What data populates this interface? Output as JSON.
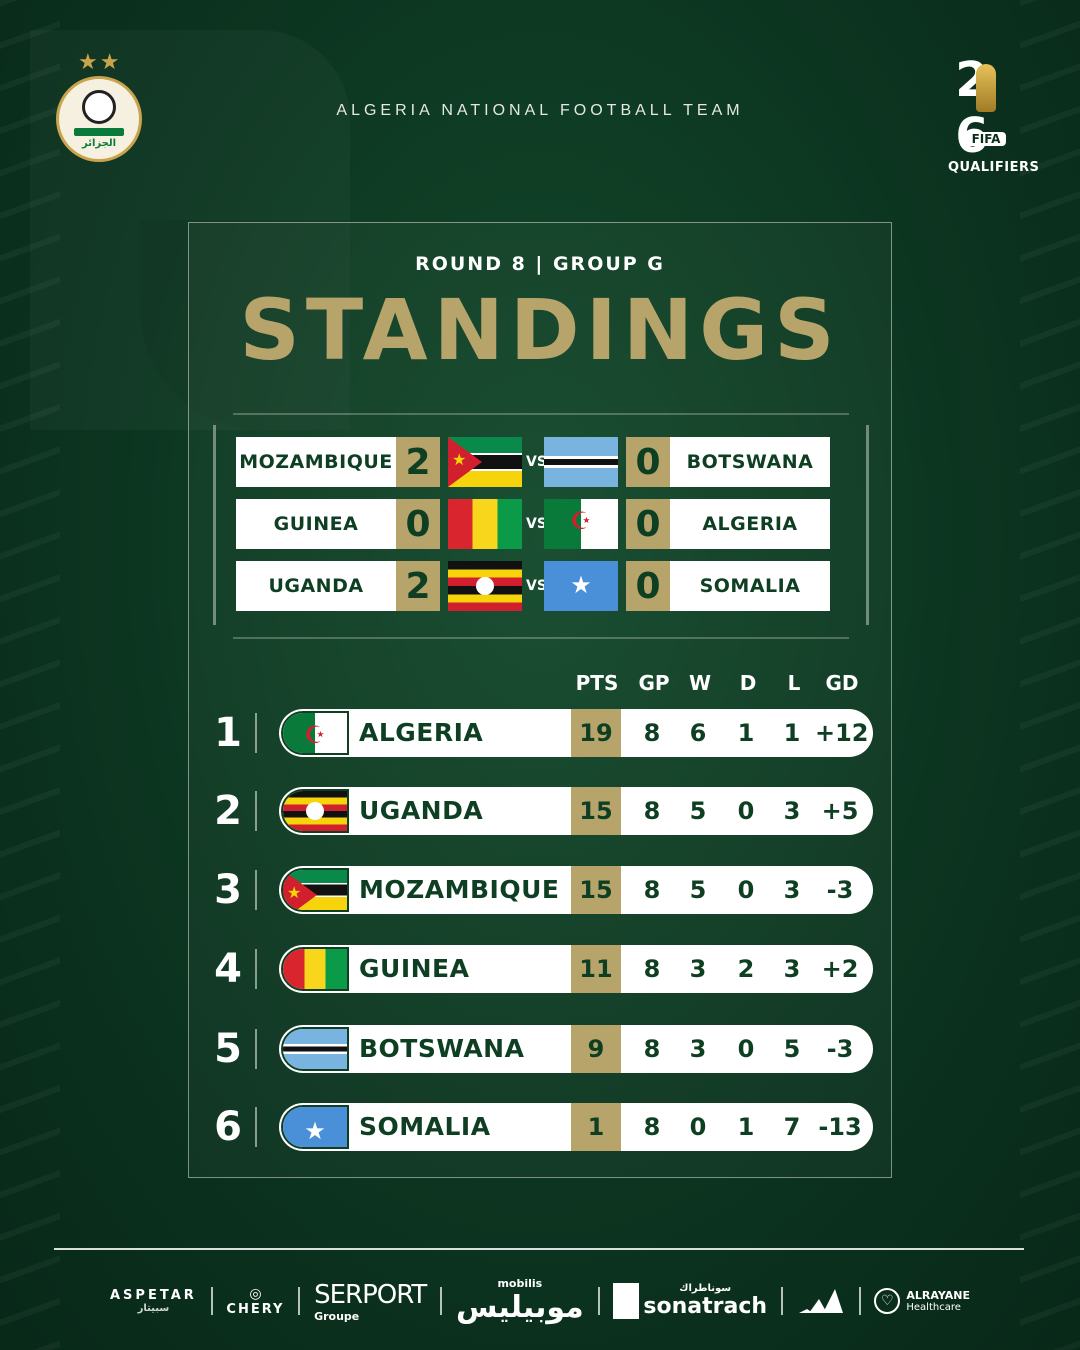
{
  "header": {
    "stars": "★★",
    "team_title": "ALGERIA NATIONAL FOOTBALL TEAM",
    "badge_text": "الجزائر",
    "wc_digits": "26",
    "wc_fifa": "FIFA",
    "wc_qualifiers": "QUALIFIERS"
  },
  "round_label": "ROUND 8 | GROUP G",
  "title": "STANDINGS",
  "vs_label": "VS",
  "results": [
    {
      "home": "MOZAMBIQUE",
      "home_score": "2",
      "home_flag": "moz",
      "away": "BOTSWANA",
      "away_score": "0",
      "away_flag": "bot"
    },
    {
      "home": "GUINEA",
      "home_score": "0",
      "home_flag": "gui",
      "away": "ALGERIA",
      "away_score": "0",
      "away_flag": "alg"
    },
    {
      "home": "UGANDA",
      "home_score": "2",
      "home_flag": "uga",
      "away": "SOMALIA",
      "away_score": "0",
      "away_flag": "som"
    }
  ],
  "table": {
    "headers": {
      "pts": "PTS",
      "gp": "GP",
      "w": "W",
      "d": "D",
      "l": "L",
      "gd": "GD"
    },
    "rows": [
      {
        "rank": "1",
        "team": "ALGERIA",
        "flag": "alg",
        "pts": "19",
        "gp": "8",
        "w": "6",
        "d": "1",
        "l": "1",
        "gd": "+12"
      },
      {
        "rank": "2",
        "team": "UGANDA",
        "flag": "uga",
        "pts": "15",
        "gp": "8",
        "w": "5",
        "d": "0",
        "l": "3",
        "gd": "+5"
      },
      {
        "rank": "3",
        "team": "MOZAMBIQUE",
        "flag": "moz",
        "pts": "15",
        "gp": "8",
        "w": "5",
        "d": "0",
        "l": "3",
        "gd": "-3"
      },
      {
        "rank": "4",
        "team": "GUINEA",
        "flag": "gui",
        "pts": "11",
        "gp": "8",
        "w": "3",
        "d": "2",
        "l": "3",
        "gd": "+2"
      },
      {
        "rank": "5",
        "team": "BOTSWANA",
        "flag": "bot",
        "pts": "9",
        "gp": "8",
        "w": "3",
        "d": "0",
        "l": "5",
        "gd": "-3"
      },
      {
        "rank": "6",
        "team": "SOMALIA",
        "flag": "som",
        "pts": "1",
        "gp": "8",
        "w": "0",
        "d": "1",
        "l": "7",
        "gd": "-13"
      }
    ]
  },
  "sponsors": {
    "aspetar": "ASPETAR",
    "aspetar_ar": "سبيتار",
    "chery": "CHERY",
    "serport": "SERPORT",
    "serport_sub": "Groupe",
    "mobilis": "موبيليس",
    "mobilis_small": "mobilis",
    "sonatrach": "sonatrach",
    "sonatrach_ar": "سوناطراك",
    "adidas_icon": "adidas-logo-icon",
    "alrayane": "ALRAYANE",
    "alrayane_sub": "Healthcare"
  },
  "colors": {
    "gold": "#b7a46a",
    "dark_green": "#0f3f23",
    "background": "#0d3a22"
  }
}
